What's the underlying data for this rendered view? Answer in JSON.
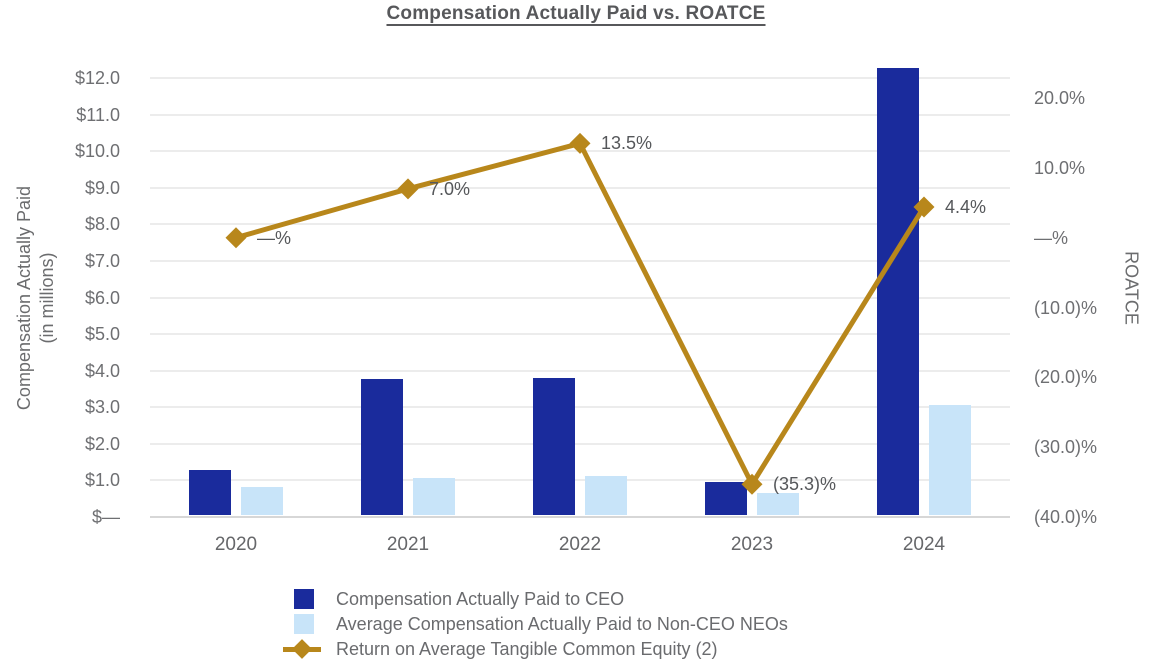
{
  "title": "Compensation Actually Paid vs. ROATCE",
  "chart_data": {
    "type": "bar",
    "title": "Compensation Actually Paid vs. ROATCE",
    "categories": [
      "2020",
      "2021",
      "2022",
      "2023",
      "2024"
    ],
    "series": [
      {
        "name": "Compensation Actually Paid to CEO",
        "type": "bar",
        "color": "#1a2b9c",
        "values": [
          1.28,
          3.76,
          3.8,
          0.95,
          12.27
        ]
      },
      {
        "name": "Average Compensation Actually Paid to Non-CEO NEOs",
        "type": "bar",
        "color": "#c8e4f9",
        "values": [
          0.82,
          1.07,
          1.12,
          0.66,
          3.05
        ]
      },
      {
        "name": "Return on Average Tangible Common Equity (2)",
        "type": "line",
        "color": "#b8871b",
        "values": [
          0.0,
          7.0,
          13.5,
          -35.3,
          4.4
        ],
        "point_labels": [
          "—%",
          "7.0%",
          "13.5%",
          "(35.3)%",
          "4.4%"
        ]
      }
    ],
    "left_axis": {
      "title": "Compensation Actually Paid",
      "title_line2": "(in millions)",
      "tick_labels": [
        "$—",
        "$1.0",
        "$2.0",
        "$3.0",
        "$4.0",
        "$5.0",
        "$6.0",
        "$7.0",
        "$8.0",
        "$9.0",
        "$10.0",
        "$11.0",
        "$12.0"
      ],
      "min": 0,
      "max": 12,
      "step": 1
    },
    "right_axis": {
      "title": "ROATCE",
      "tick_labels": [
        "(40.0)%",
        "(30.0)%",
        "(20.0)%",
        "(10.0)%",
        "—%",
        "10.0%",
        "20.0%"
      ],
      "min": -40,
      "max": 20,
      "step": 10
    },
    "grid": true,
    "legend_position": "bottom"
  }
}
